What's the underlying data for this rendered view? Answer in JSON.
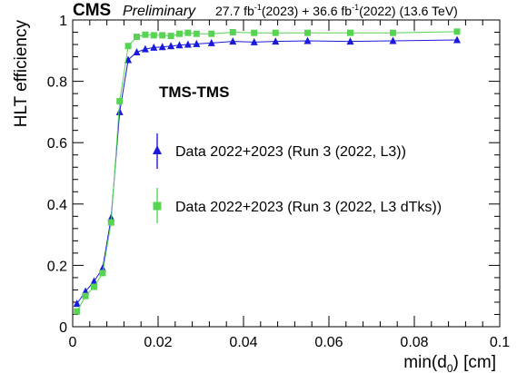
{
  "header": {
    "experiment": "CMS",
    "status": "Preliminary",
    "lumi_2023_value": "27.7 fb",
    "lumi_2023_year": "(2023)",
    "lumi_join": " + ",
    "lumi_2022_value": "36.6 fb",
    "lumi_2022_year": "(2022)",
    "energy": "(13.6 TeV)",
    "inverse_exp": "-1"
  },
  "chart_data": {
    "type": "scatter",
    "category_label": "TMS-TMS",
    "xlabel_main": "min(d",
    "xlabel_sub": "0",
    "xlabel_unit": ") [cm]",
    "ylabel": "HLT efficiency",
    "xlim": [
      0,
      0.1
    ],
    "ylim": [
      0,
      1.0
    ],
    "x_ticks": [
      "0",
      "0.02",
      "0.04",
      "0.06",
      "0.08",
      "0.1"
    ],
    "y_ticks": [
      "0",
      "0.2",
      "0.4",
      "0.6",
      "0.8",
      "1"
    ],
    "legend_position": "center",
    "series": [
      {
        "name": "Data 2022+2023 (Run 3 (2022, L3))",
        "color": "#1a1adc",
        "marker": "triangle",
        "x": [
          0.001,
          0.003,
          0.005,
          0.007,
          0.009,
          0.011,
          0.013,
          0.015,
          0.017,
          0.019,
          0.021,
          0.023,
          0.025,
          0.027,
          0.029,
          0.0325,
          0.0375,
          0.0425,
          0.0475,
          0.055,
          0.065,
          0.075,
          0.09
        ],
        "y": [
          0.075,
          0.115,
          0.148,
          0.19,
          0.355,
          0.7,
          0.87,
          0.895,
          0.905,
          0.91,
          0.912,
          0.915,
          0.918,
          0.92,
          0.922,
          0.925,
          0.93,
          0.928,
          0.93,
          0.932,
          0.93,
          0.932,
          0.935
        ],
        "yerr": [
          0.01,
          0.01,
          0.01,
          0.01,
          0.012,
          0.012,
          0.01,
          0.008,
          0.008,
          0.008,
          0.008,
          0.008,
          0.008,
          0.008,
          0.008,
          0.006,
          0.006,
          0.006,
          0.006,
          0.005,
          0.005,
          0.005,
          0.005
        ]
      },
      {
        "name": "Data 2022+2023 (Run 3 (2022, L3 dTks))",
        "color": "#58d454",
        "marker": "square",
        "x": [
          0.001,
          0.003,
          0.005,
          0.007,
          0.009,
          0.011,
          0.013,
          0.015,
          0.017,
          0.019,
          0.021,
          0.023,
          0.025,
          0.027,
          0.029,
          0.0325,
          0.0375,
          0.0425,
          0.0475,
          0.055,
          0.065,
          0.075,
          0.09
        ],
        "y": [
          0.05,
          0.1,
          0.13,
          0.175,
          0.34,
          0.735,
          0.915,
          0.945,
          0.952,
          0.95,
          0.95,
          0.948,
          0.955,
          0.958,
          0.955,
          0.955,
          0.96,
          0.958,
          0.958,
          0.958,
          0.958,
          0.958,
          0.962
        ],
        "yerr": [
          0.01,
          0.01,
          0.01,
          0.01,
          0.012,
          0.012,
          0.01,
          0.008,
          0.008,
          0.008,
          0.008,
          0.008,
          0.008,
          0.008,
          0.008,
          0.006,
          0.006,
          0.006,
          0.006,
          0.005,
          0.005,
          0.005,
          0.005
        ]
      }
    ]
  }
}
